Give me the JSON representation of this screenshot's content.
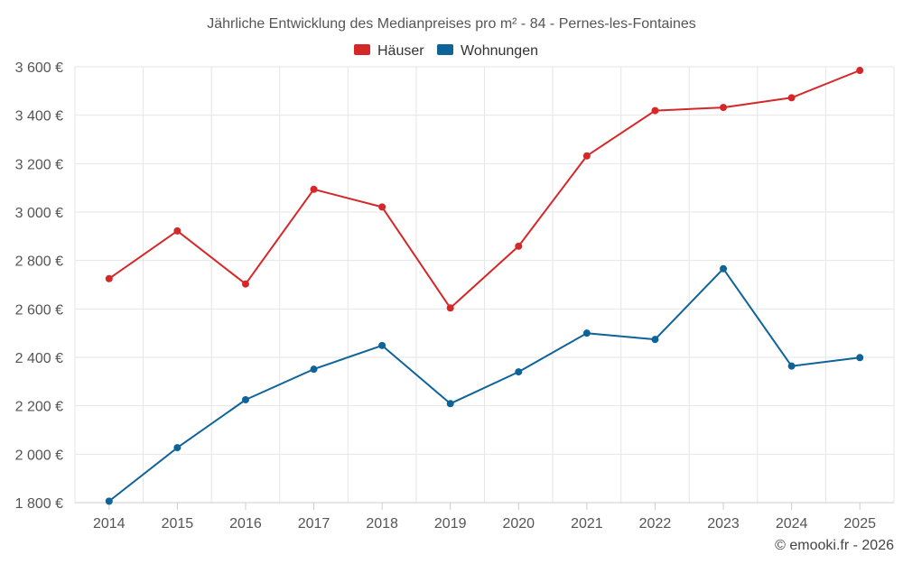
{
  "chart_data": {
    "type": "line",
    "title": "Jährliche Entwicklung des Medianpreises pro m² - 84 - Pernes-les-Fontaines",
    "categories": [
      "2014",
      "2015",
      "2016",
      "2017",
      "2018",
      "2019",
      "2020",
      "2021",
      "2022",
      "2023",
      "2024",
      "2025"
    ],
    "series": [
      {
        "name": "Häuser",
        "color": "#d62728",
        "values": [
          2725,
          2922,
          2703,
          3094,
          3021,
          2604,
          2859,
          3232,
          3419,
          3432,
          3472,
          3585
        ]
      },
      {
        "name": "Wohnungen",
        "color": "#0e6399",
        "values": [
          1806,
          2027,
          2225,
          2351,
          2449,
          2209,
          2340,
          2500,
          2474,
          2766,
          2364,
          2399
        ]
      }
    ],
    "ylim": [
      1800,
      3600
    ],
    "yticks": [
      1800,
      2000,
      2200,
      2400,
      2600,
      2800,
      3000,
      3200,
      3400,
      3600
    ],
    "ytick_labels": [
      "1 800 €",
      "2 000 €",
      "2 200 €",
      "2 400 €",
      "2 600 €",
      "2 800 €",
      "3 000 €",
      "3 200 €",
      "3 400 €",
      "3 600 €"
    ],
    "xlabel": "",
    "ylabel": "",
    "grid": true,
    "legend_position": "top-center",
    "credit": "© emooki.fr - 2026"
  }
}
